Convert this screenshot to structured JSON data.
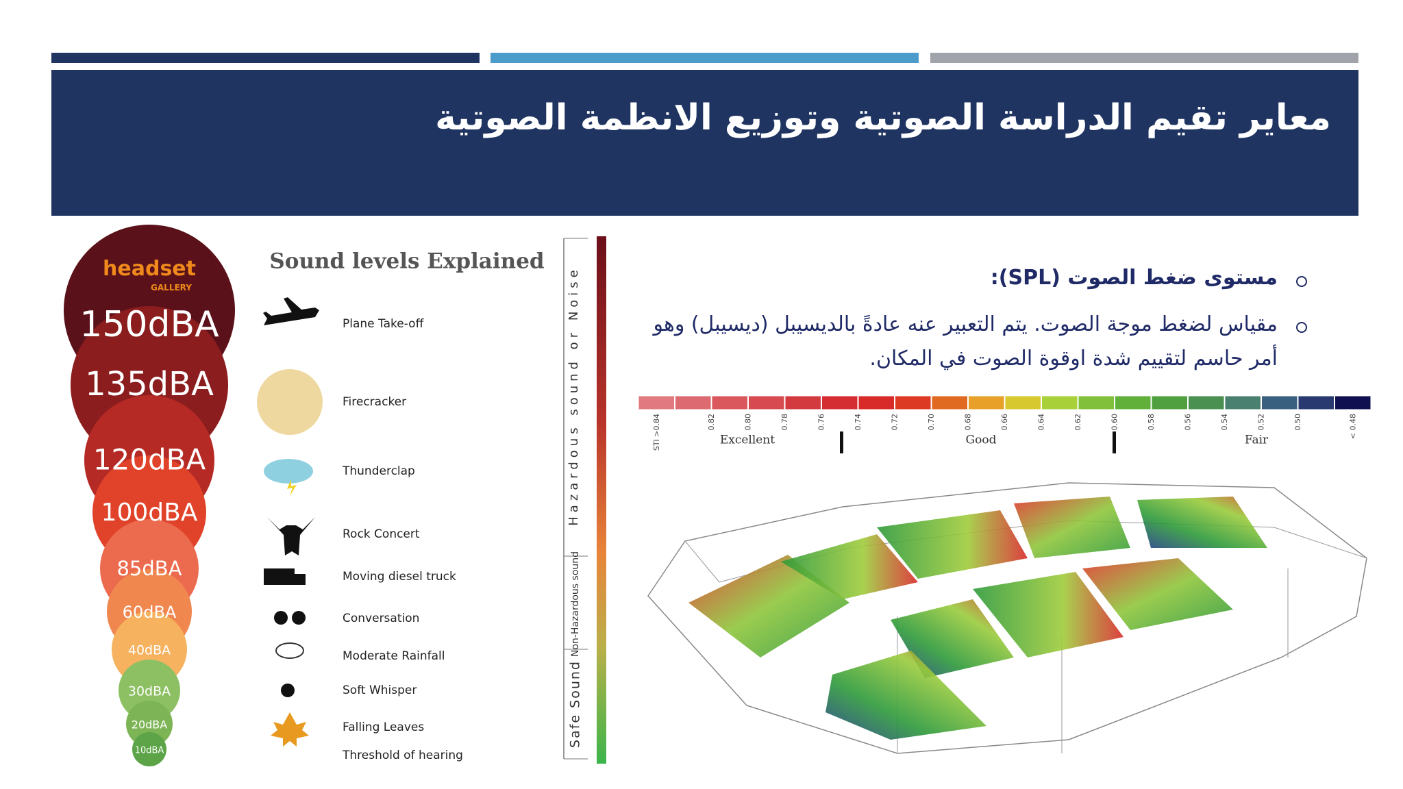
{
  "header": {
    "title": "معاير تقيم الدراسة الصوتية وتوزيع الانظمة الصوتية"
  },
  "sound_levels": {
    "logo": {
      "brand": "headset",
      "sub": "GALLERY"
    },
    "heading": "Sound levels Explained",
    "levels": [
      {
        "label": "150dBA",
        "source": "Plane Take-off"
      },
      {
        "label": "135dBA",
        "source": "Firecracker"
      },
      {
        "label": "120dBA",
        "source": "Thunderclap"
      },
      {
        "label": "100dBA",
        "source": "Rock Concert"
      },
      {
        "label": "85dBA",
        "source": "Moving diesel truck"
      },
      {
        "label": "60dBA",
        "source": "Conversation"
      },
      {
        "label": "40dBA",
        "source": "Moderate Rainfall"
      },
      {
        "label": "30dBA",
        "source": "Soft Whisper"
      },
      {
        "label": "20dBA",
        "source": "Falling Leaves"
      },
      {
        "label": "10dBA",
        "source": "Threshold of hearing"
      }
    ],
    "zones": [
      "Hazardous sound or Noise",
      "Non-Hazardous sound",
      "Safe Sound"
    ]
  },
  "bullets": [
    {
      "lines": [
        "مستوى ضغط الصوت (SPL):"
      ]
    },
    {
      "lines": [
        "مقياس لضغط موجة الصوت. يتم التعبير عنه عادةً بالديسيبل (ديسيبل) وهو",
        "أمر حاسم لتقييم شدة اوقوة الصوت في المكان."
      ]
    }
  ],
  "sti_scale": {
    "ticks": [
      "STI >0.84",
      "0.82",
      "0.80",
      "0.78",
      "0.76",
      "0.74",
      "0.72",
      "0.70",
      "0.68",
      "0.66",
      "0.64",
      "0.62",
      "0.60",
      "0.58",
      "0.56",
      "0.54",
      "0.52",
      "0.50",
      "< 0.48"
    ],
    "ratings": [
      "Excellent",
      "Good",
      "Fair"
    ]
  }
}
